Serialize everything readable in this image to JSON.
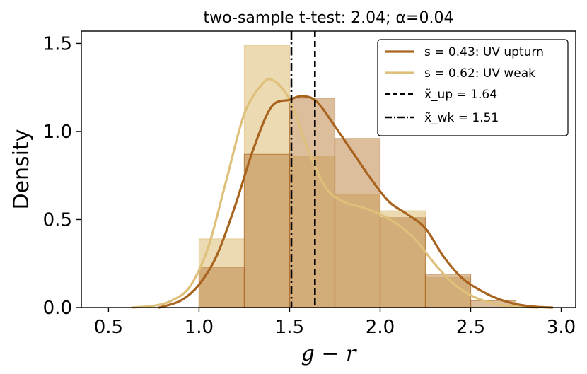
{
  "chart_data": {
    "type": "histogram+kde",
    "title": "two-sample t-test: 2.04; α=0.04",
    "xlabel": "g − r",
    "ylabel": "Density",
    "xlim": [
      0.35,
      3.08
    ],
    "ylim": [
      0,
      1.57
    ],
    "x_ticks": [
      "0.5",
      "1.0",
      "1.5",
      "2.0",
      "2.5",
      "3.0"
    ],
    "y_ticks": [
      "0.0",
      "0.5",
      "1.0",
      "1.5"
    ],
    "colors": {
      "upturn": "#a8631f",
      "weak": "#dfc07b",
      "upturn_fill": "#c0864a",
      "weak_fill": "#e6cf98"
    },
    "bin_edges": [
      1.0,
      1.25,
      1.5,
      1.75,
      2.0,
      2.25,
      2.5,
      2.75
    ],
    "histograms": [
      {
        "name": "upturn",
        "values": [
          0.23,
          0.87,
          1.19,
          0.96,
          0.51,
          0.19,
          0.04
        ]
      },
      {
        "name": "weak",
        "values": [
          0.39,
          1.49,
          0.86,
          0.64,
          0.55,
          0.17,
          0.0
        ]
      }
    ],
    "series": [
      {
        "name": "s = 0.43: UV upturn",
        "x": [
          0.78,
          0.9,
          1.0,
          1.1,
          1.2,
          1.3,
          1.4,
          1.5,
          1.57,
          1.65,
          1.75,
          1.85,
          1.95,
          2.05,
          2.15,
          2.25,
          2.35,
          2.45,
          2.55,
          2.65,
          2.75,
          2.85,
          2.95
        ],
        "y": [
          0.0,
          0.04,
          0.13,
          0.3,
          0.58,
          0.9,
          1.14,
          1.18,
          1.2,
          1.17,
          1.03,
          0.88,
          0.73,
          0.6,
          0.53,
          0.45,
          0.29,
          0.17,
          0.1,
          0.05,
          0.02,
          0.005,
          0.0
        ]
      },
      {
        "name": "s = 0.62: UV weak",
        "x": [
          0.63,
          0.75,
          0.85,
          0.95,
          1.05,
          1.15,
          1.25,
          1.35,
          1.41,
          1.5,
          1.6,
          1.7,
          1.8,
          1.9,
          2.0,
          2.1,
          2.2,
          2.3,
          2.4,
          2.5,
          2.6,
          2.7,
          2.8,
          2.87
        ],
        "y": [
          0.0,
          0.01,
          0.04,
          0.12,
          0.34,
          0.72,
          1.1,
          1.27,
          1.29,
          1.18,
          0.9,
          0.68,
          0.6,
          0.57,
          0.53,
          0.47,
          0.38,
          0.25,
          0.14,
          0.07,
          0.03,
          0.01,
          0.003,
          0.0
        ]
      }
    ],
    "vlines": [
      {
        "name": "x̃_up = 1.64",
        "x": 1.64,
        "style": "dashed"
      },
      {
        "name": "x̃_wk = 1.51",
        "x": 1.51,
        "style": "dashdot"
      }
    ],
    "legend": {
      "placement": "top-right",
      "entries": [
        "s = 0.43: UV upturn",
        "s = 0.62: UV weak",
        "x̃_up = 1.64",
        "x̃_wk = 1.51"
      ]
    }
  }
}
